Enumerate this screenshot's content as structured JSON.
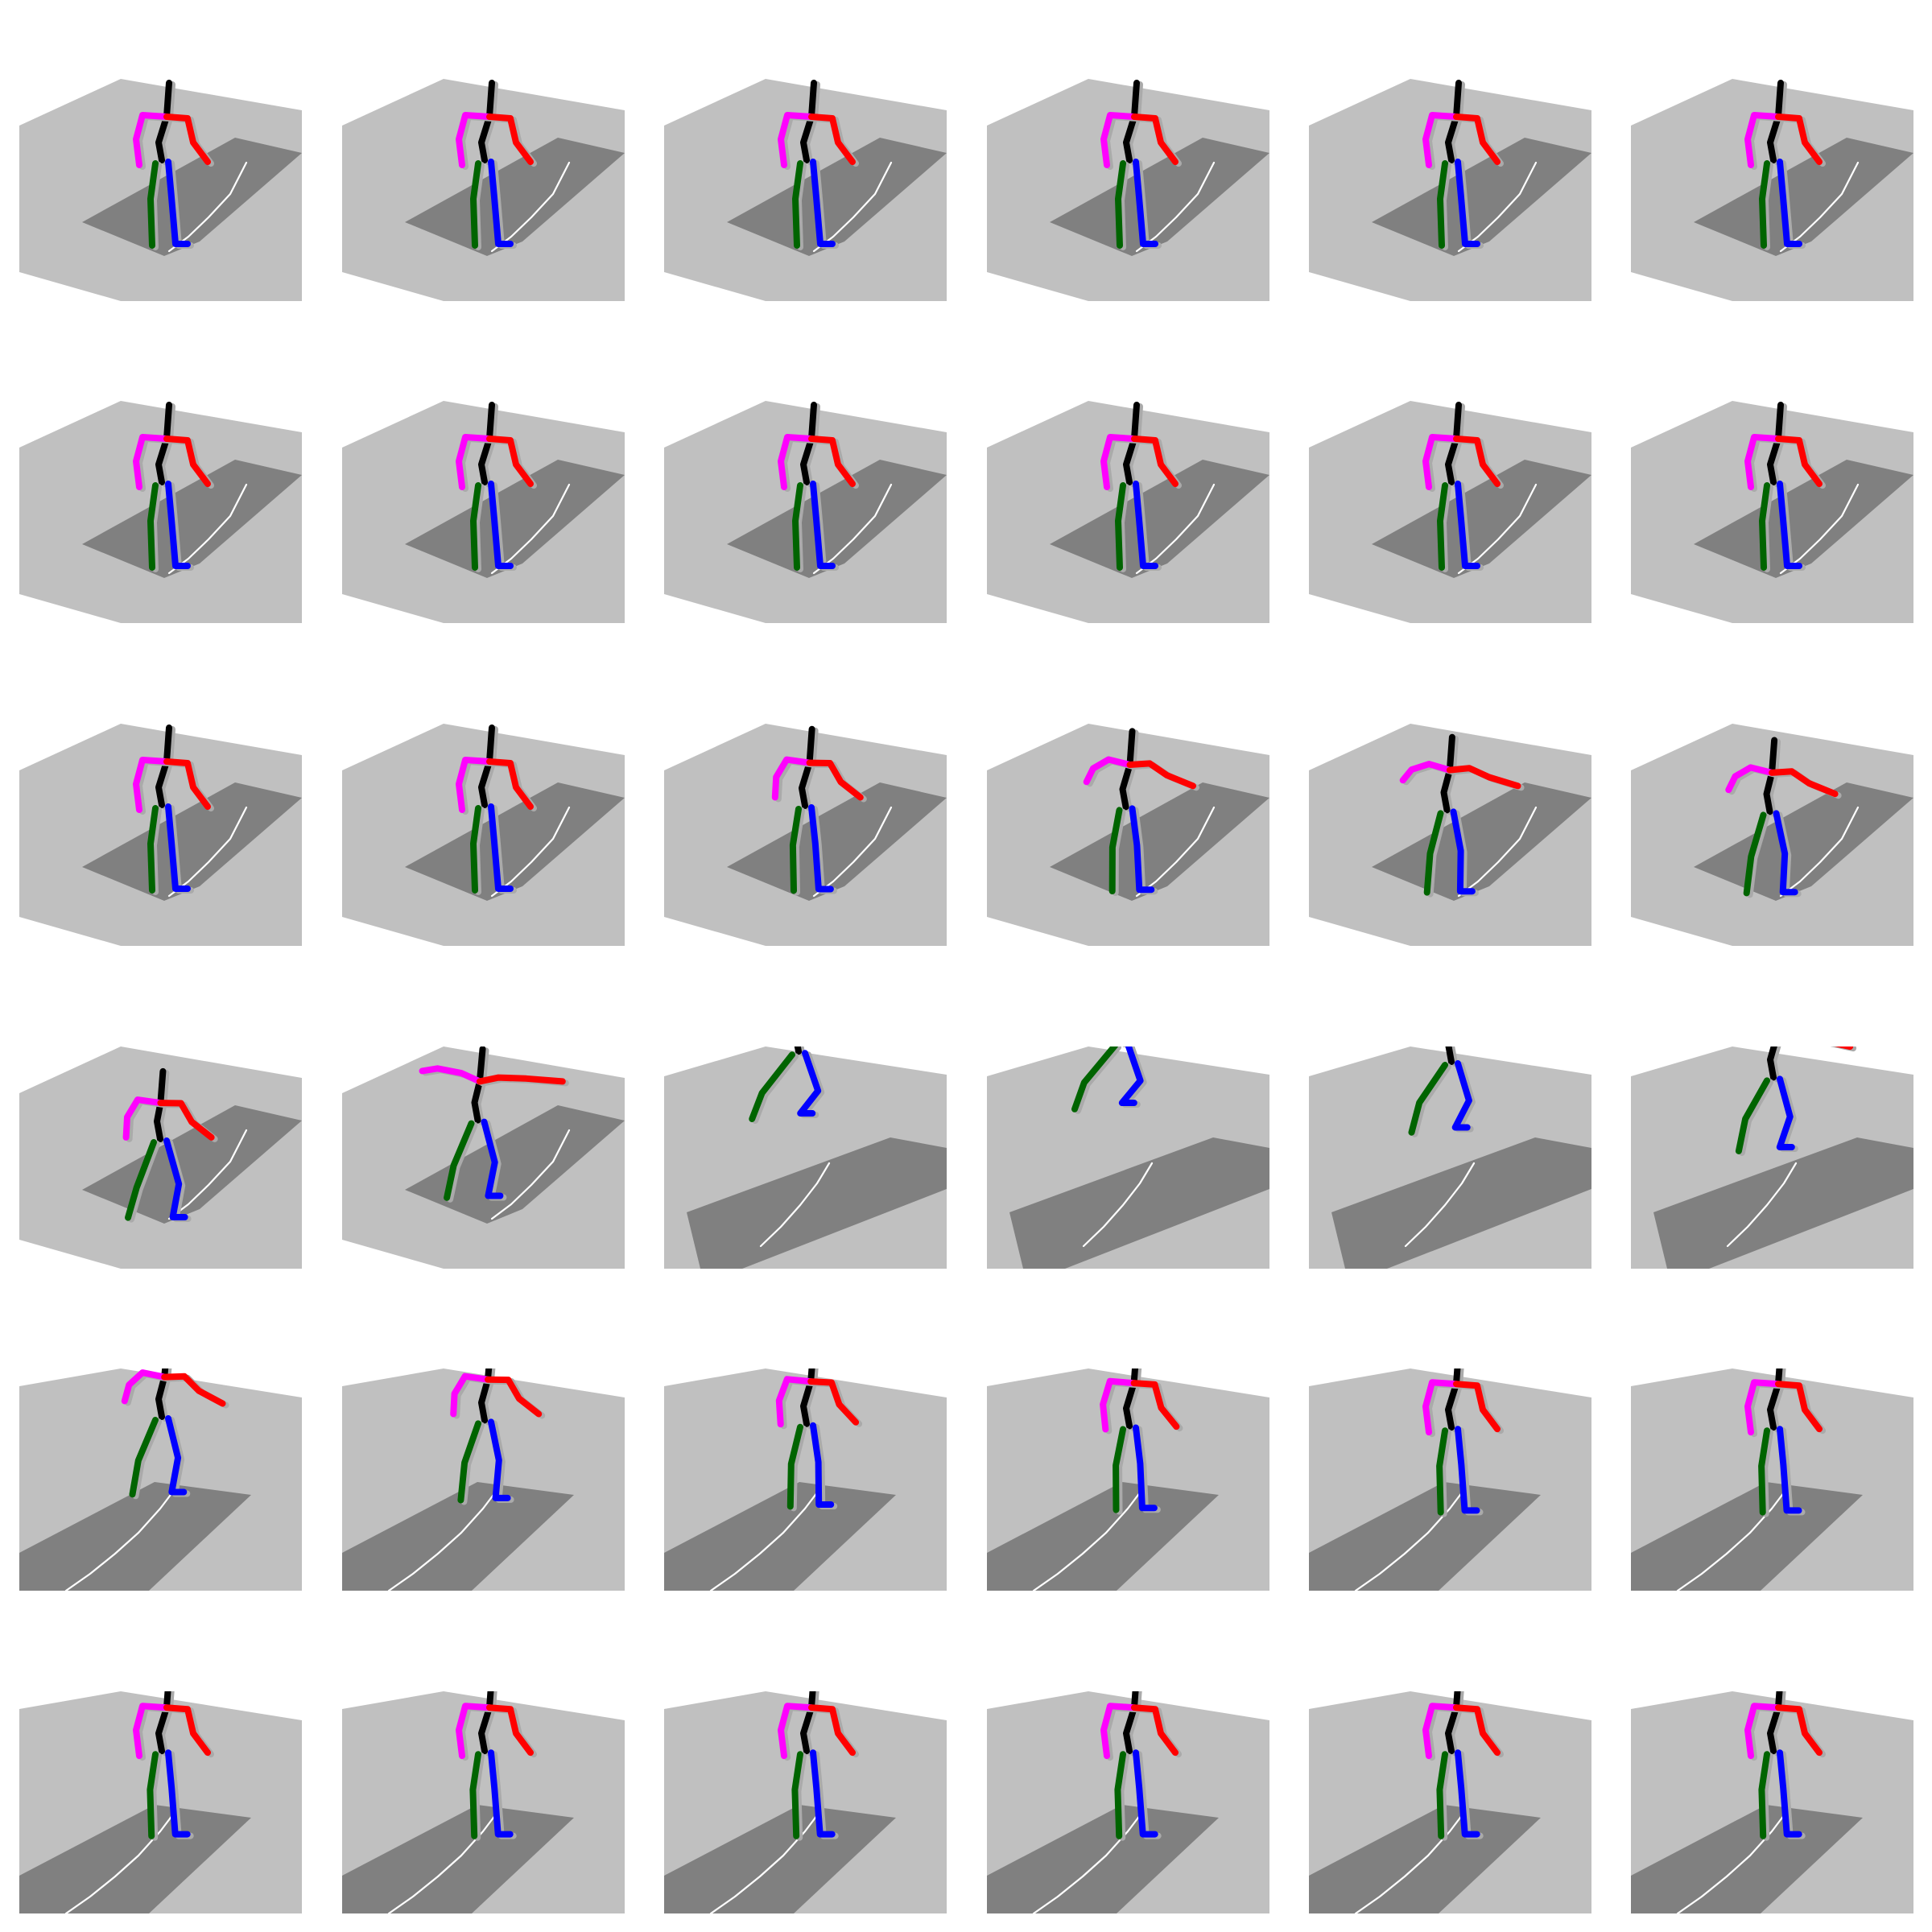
{
  "grid": {
    "rows": 6,
    "columns": 6,
    "frame_count": 36
  },
  "colors": {
    "background": "#ffffff",
    "wall_plane": "#c0c0c0",
    "floor_patch": "#808080",
    "trajectory": "#ffffff",
    "shadow": "#aaaaaa",
    "spine": "#000000",
    "left_arm": "#ff00ff",
    "right_arm": "#ff0000",
    "left_leg": "#006400",
    "right_leg": "#0000ff"
  },
  "labels": {
    "skeleton": "skeleton",
    "trajectory": "trajectory",
    "spine": "spine",
    "left_arm": "left-arm",
    "right_arm": "right-arm",
    "left_leg": "left-leg",
    "right_leg": "right-leg"
  },
  "motion": {
    "description_note": "",
    "frames": [
      {
        "phase": "stand",
        "jump": 0,
        "armLift": 0,
        "crouch": 0,
        "camera": "high"
      },
      {
        "phase": "stand",
        "jump": 0,
        "armLift": 0,
        "crouch": 0,
        "camera": "high"
      },
      {
        "phase": "stand",
        "jump": 0,
        "armLift": 0,
        "crouch": 0,
        "camera": "high"
      },
      {
        "phase": "stand",
        "jump": 0,
        "armLift": 0,
        "crouch": 0,
        "camera": "high"
      },
      {
        "phase": "stand",
        "jump": 0,
        "armLift": 0,
        "crouch": 0,
        "camera": "high"
      },
      {
        "phase": "stand",
        "jump": 0,
        "armLift": 0,
        "crouch": 0,
        "camera": "high"
      },
      {
        "phase": "stand",
        "jump": 0,
        "armLift": 0,
        "crouch": 0,
        "camera": "high"
      },
      {
        "phase": "stand",
        "jump": 0,
        "armLift": 0,
        "crouch": 0,
        "camera": "high"
      },
      {
        "phase": "stand",
        "jump": 0,
        "armLift": 0,
        "crouch": 0,
        "camera": "high"
      },
      {
        "phase": "stand",
        "jump": 0,
        "armLift": 0,
        "crouch": 0,
        "camera": "high"
      },
      {
        "phase": "stand",
        "jump": 0,
        "armLift": 0,
        "crouch": 0,
        "camera": "high"
      },
      {
        "phase": "stand",
        "jump": 0,
        "armLift": 0,
        "crouch": 0,
        "camera": "high"
      },
      {
        "phase": "stand",
        "jump": 0,
        "armLift": 0,
        "crouch": 0,
        "camera": "high"
      },
      {
        "phase": "stand",
        "jump": 0,
        "armLift": 0,
        "crouch": 0,
        "camera": "high"
      },
      {
        "phase": "prepare",
        "jump": 0,
        "armLift": 0.2,
        "crouch": 0.05,
        "camera": "high"
      },
      {
        "phase": "prepare",
        "jump": 0,
        "armLift": 0.45,
        "crouch": 0.12,
        "camera": "high"
      },
      {
        "phase": "crouch",
        "jump": 0,
        "armLift": 0.55,
        "crouch": 0.32,
        "camera": "high"
      },
      {
        "phase": "crouch",
        "jump": 0,
        "armLift": 0.45,
        "crouch": 0.42,
        "camera": "high"
      },
      {
        "phase": "crouch",
        "jump": 0,
        "armLift": 0.2,
        "crouch": 0.7,
        "camera": "high"
      },
      {
        "phase": "takeoff",
        "jump": 0.2,
        "armLift": 0.85,
        "crouch": 0.45,
        "camera": "high"
      },
      {
        "phase": "air",
        "jump": 0.9,
        "armLift": 1,
        "crouch": 0.2,
        "camera": "lower"
      },
      {
        "phase": "air",
        "jump": 1,
        "armLift": 1,
        "crouch": 0.1,
        "camera": "lower"
      },
      {
        "phase": "descend",
        "jump": 0.75,
        "armLift": 0.85,
        "crouch": 0.15,
        "camera": "lower"
      },
      {
        "phase": "descend",
        "jump": 0.55,
        "armLift": 0.65,
        "crouch": 0.2,
        "camera": "lower"
      },
      {
        "phase": "land",
        "jump": 0.25,
        "armLift": 0.35,
        "crouch": 0.35,
        "camera": "low"
      },
      {
        "phase": "land",
        "jump": 0.18,
        "armLift": 0.2,
        "crouch": 0.25,
        "camera": "low"
      },
      {
        "phase": "recover",
        "jump": 0.1,
        "armLift": 0.08,
        "crouch": 0.1,
        "camera": "low"
      },
      {
        "phase": "recover",
        "jump": 0.06,
        "armLift": 0.03,
        "crouch": 0.05,
        "camera": "low"
      },
      {
        "phase": "stand",
        "jump": 0.03,
        "armLift": 0,
        "crouch": 0,
        "camera": "low"
      },
      {
        "phase": "stand",
        "jump": 0.03,
        "armLift": 0,
        "crouch": 0,
        "camera": "low"
      },
      {
        "phase": "stand",
        "jump": 0.02,
        "armLift": 0,
        "crouch": 0,
        "camera": "low"
      },
      {
        "phase": "stand",
        "jump": 0.02,
        "armLift": 0,
        "crouch": 0,
        "camera": "low"
      },
      {
        "phase": "stand",
        "jump": 0.02,
        "armLift": 0,
        "crouch": 0,
        "camera": "low"
      },
      {
        "phase": "stand",
        "jump": 0.02,
        "armLift": 0,
        "crouch": 0,
        "camera": "low"
      },
      {
        "phase": "stand",
        "jump": 0.02,
        "armLift": 0,
        "crouch": 0,
        "camera": "low"
      },
      {
        "phase": "stand",
        "jump": 0.02,
        "armLift": 0,
        "crouch": 0,
        "camera": "low"
      }
    ]
  }
}
